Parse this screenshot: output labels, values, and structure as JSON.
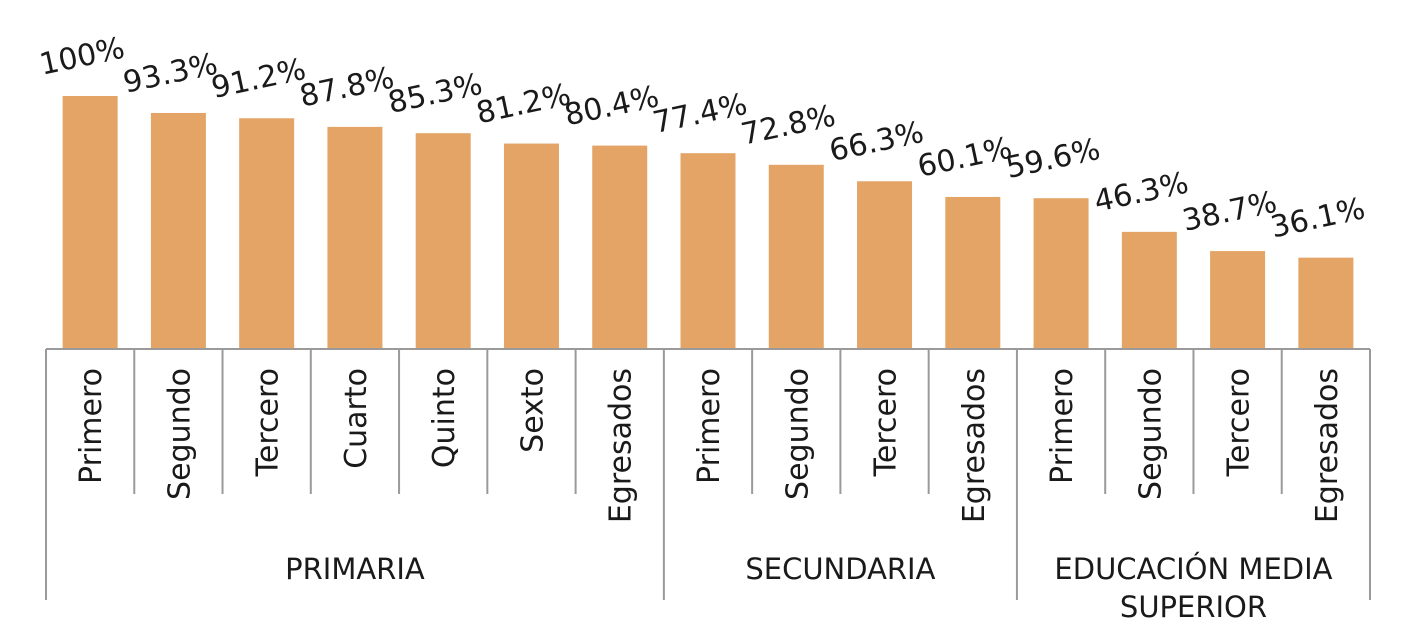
{
  "chart_data": {
    "type": "bar",
    "title": "",
    "xlabel": "",
    "ylabel": "",
    "ylim": [
      0,
      100
    ],
    "grid": false,
    "bar_color": "#E3A466",
    "categories": [
      "Primero",
      "Segundo",
      "Tercero",
      "Cuarto",
      "Quinto",
      "Sexto",
      "Egresados",
      "Primero",
      "Segundo",
      "Tercero",
      "Egresados",
      "Primero",
      "Segundo",
      "Tercero",
      "Egresados"
    ],
    "values": [
      100,
      93.3,
      91.2,
      87.8,
      85.3,
      81.2,
      80.4,
      77.4,
      72.8,
      66.3,
      60.1,
      59.6,
      46.3,
      38.7,
      36.1
    ],
    "value_labels": [
      "100%",
      "93.3%",
      "91.2%",
      "87.8%",
      "85.3%",
      "81.2%",
      "80.4%",
      "77.4%",
      "72.8%",
      "66.3%",
      "60.1%",
      "59.6%",
      "46.3%",
      "38.7%",
      "36.1%"
    ],
    "groups": [
      {
        "label_lines": [
          "PRIMARIA"
        ],
        "count": 7
      },
      {
        "label_lines": [
          "SECUNDARIA"
        ],
        "count": 4
      },
      {
        "label_lines": [
          "EDUCACIÓN MEDIA",
          "SUPERIOR"
        ],
        "count": 4
      }
    ]
  }
}
